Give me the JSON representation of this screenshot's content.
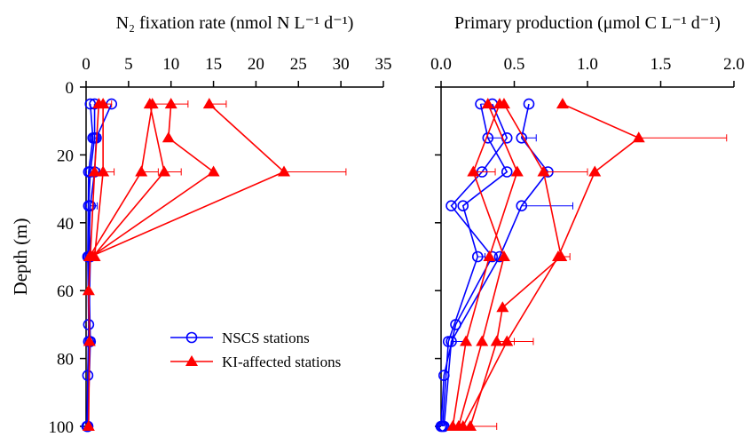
{
  "chart_data": [
    {
      "type": "profile",
      "title": "N₂ fixation rate (nmol N L⁻¹ d⁻¹)",
      "y_label": "Depth (m)",
      "xlim": [
        0,
        35
      ],
      "xticks": [
        0,
        5,
        10,
        15,
        20,
        25,
        30,
        35
      ],
      "ylim": [
        0,
        100
      ],
      "yticks": [
        0,
        20,
        40,
        60,
        80,
        100
      ],
      "y_inverted": true,
      "show_ytick_labels": true,
      "legend": "lower right",
      "series": [
        {
          "name": "NSCS stations",
          "color": "#0000ff",
          "marker": "circle",
          "profiles": [
            {
              "depth": [
                5,
                15,
                25,
                35,
                50,
                75,
                100
              ],
              "values": [
                3.0,
                1.2,
                1.0,
                0.5,
                0.3,
                0.5,
                0.2
              ],
              "errors": [
                null,
                0.5,
                0.6,
                0.8,
                null,
                0.5,
                null
              ]
            },
            {
              "depth": [
                5,
                15,
                25,
                50,
                70,
                100
              ],
              "values": [
                0.5,
                0.8,
                0.3,
                0.2,
                0.3,
                0.1
              ],
              "errors": [
                null,
                null,
                null,
                null,
                null,
                null
              ]
            },
            {
              "depth": [
                5,
                15,
                25,
                35,
                50,
                75,
                85,
                100
              ],
              "values": [
                1.0,
                1.0,
                0.5,
                0.3,
                0.5,
                0.3,
                0.2,
                0.2
              ],
              "errors": [
                null,
                0.4,
                null,
                null,
                0.6,
                null,
                null,
                null
              ]
            }
          ]
        },
        {
          "name": "KI-affected stations",
          "color": "#ff0000",
          "marker": "triangle",
          "profiles": [
            {
              "depth": [
                5,
                25,
                50
              ],
              "values": [
                14.5,
                23.3,
                0.5
              ],
              "errors": [
                2.0,
                7.3,
                null
              ]
            },
            {
              "depth": [
                5,
                15,
                25,
                50
              ],
              "values": [
                10.0,
                9.7,
                15.0,
                0.6
              ],
              "errors": [
                2.0,
                null,
                null,
                null
              ]
            },
            {
              "depth": [
                5,
                25,
                50
              ],
              "values": [
                7.5,
                9.2,
                0.8
              ],
              "errors": [
                2.5,
                2.0,
                0.4
              ]
            },
            {
              "depth": [
                5,
                25,
                50
              ],
              "values": [
                7.8,
                6.5,
                0.4
              ],
              "errors": [
                null,
                2.0,
                null
              ]
            },
            {
              "depth": [
                5,
                25,
                50
              ],
              "values": [
                2.0,
                2.0,
                1.0
              ],
              "errors": [
                1.0,
                1.3,
                null
              ]
            },
            {
              "depth": [
                5,
                25,
                50,
                60,
                75,
                100
              ],
              "values": [
                1.5,
                1.0,
                0.5,
                0.3,
                0.4,
                0.3
              ],
              "errors": [
                null,
                null,
                null,
                null,
                null,
                null
              ]
            }
          ]
        }
      ]
    },
    {
      "type": "profile",
      "title": "Primary production (μmol C L⁻¹ d⁻¹)",
      "xlim": [
        0,
        2.0
      ],
      "xticks": [
        {
          "value": 0,
          "label": "0.0"
        },
        0.5,
        {
          "value": 1,
          "label": "1.0"
        },
        1.5,
        {
          "value": 2,
          "label": "2.0"
        }
      ],
      "ylim": [
        0,
        100
      ],
      "yticks": [
        0,
        20,
        40,
        60,
        80,
        100
      ],
      "y_inverted": true,
      "show_ytick_labels": false,
      "series": [
        {
          "name": "NSCS stations",
          "color": "#0000ff",
          "marker": "circle",
          "profiles": [
            {
              "depth": [
                5,
                15,
                25,
                35,
                50,
                75,
                100
              ],
              "values": [
                0.6,
                0.55,
                0.73,
                0.55,
                0.4,
                0.07,
                0.02
              ],
              "errors": [
                null,
                0.1,
                null,
                0.35,
                null,
                0.1,
                null
              ]
            },
            {
              "depth": [
                5,
                15,
                25,
                35,
                50,
                75,
                100
              ],
              "values": [
                0.27,
                0.32,
                0.45,
                0.15,
                0.25,
                0.05,
                0.01
              ],
              "errors": [
                0.05,
                0.1,
                null,
                null,
                0.05,
                null,
                null
              ]
            },
            {
              "depth": [
                5,
                15,
                25,
                35,
                50,
                70,
                85,
                100
              ],
              "values": [
                0.35,
                0.45,
                0.28,
                0.07,
                0.35,
                0.1,
                0.02,
                0.0
              ],
              "errors": [
                null,
                null,
                null,
                null,
                null,
                null,
                null,
                null
              ]
            }
          ]
        },
        {
          "name": "KI-affected stations",
          "color": "#ff0000",
          "marker": "triangle",
          "profiles": [
            {
              "depth": [
                5,
                15,
                25,
                50,
                75,
                100
              ],
              "values": [
                0.83,
                1.35,
                1.05,
                0.8,
                0.45,
                0.15
              ],
              "errors": [
                null,
                0.6,
                null,
                0.08,
                0.18,
                null
              ]
            },
            {
              "depth": [
                5,
                25,
                50,
                65,
                75,
                100
              ],
              "values": [
                0.43,
                0.7,
                0.82,
                0.42,
                0.38,
                0.2
              ],
              "errors": [
                null,
                0.3,
                null,
                null,
                0.12,
                0.18
              ]
            },
            {
              "depth": [
                5,
                25,
                50,
                75,
                100
              ],
              "values": [
                0.32,
                0.52,
                0.33,
                0.17,
                0.08
              ],
              "errors": [
                null,
                null,
                null,
                null,
                null
              ]
            },
            {
              "depth": [
                5,
                25,
                50,
                75,
                100
              ],
              "values": [
                0.4,
                0.22,
                0.43,
                0.28,
                0.12
              ],
              "errors": [
                null,
                0.15,
                null,
                null,
                null
              ]
            }
          ]
        }
      ]
    }
  ]
}
